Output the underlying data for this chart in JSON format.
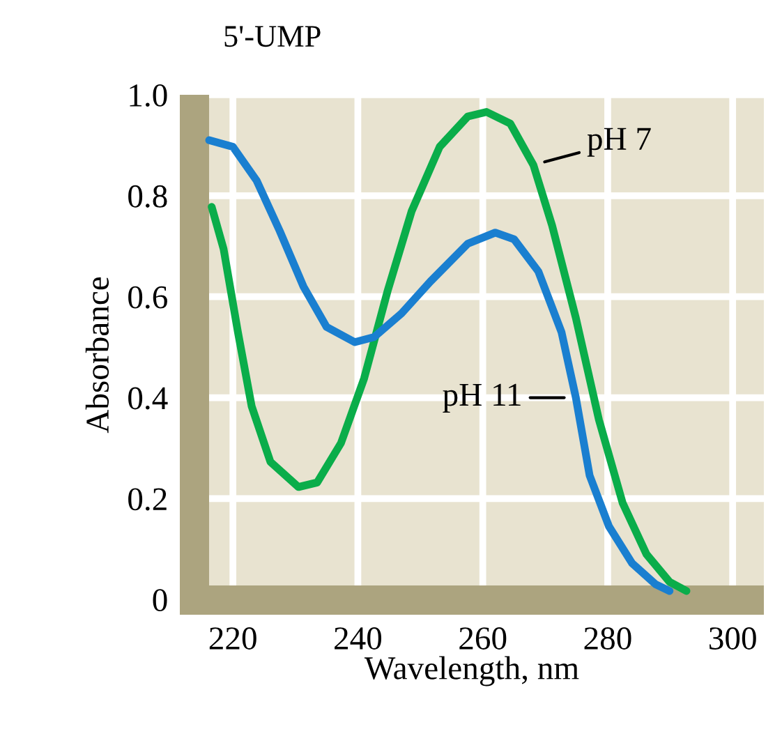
{
  "chart_data": {
    "type": "line",
    "title": "5'-UMP",
    "xlabel": "Wavelength, nm",
    "ylabel": "Absorbance",
    "xlim": [
      211.5,
      305
    ],
    "ylim": [
      -0.03,
      1.0
    ],
    "xticks": [
      220,
      240,
      260,
      280,
      300
    ],
    "yticks": [
      {
        "value": 0,
        "label": "0"
      },
      {
        "value": 0.2,
        "label": "0.2"
      },
      {
        "value": 0.4,
        "label": "0.4"
      },
      {
        "value": 0.6,
        "label": "0.6"
      },
      {
        "value": 0.8,
        "label": "0.8"
      },
      {
        "value": 1.0,
        "label": "1.0"
      }
    ],
    "grid": true,
    "legend": false,
    "marker": "none",
    "line_style": "solid",
    "series": [
      {
        "name": "pH 7",
        "color": "#0aad4a",
        "x": [
          216.6,
          218.5,
          220.8,
          223,
          226,
          230.5,
          233.5,
          237.3,
          241,
          244.8,
          248.6,
          253.1,
          257.6,
          260.6,
          264.4,
          268.1,
          271.1,
          274.9,
          278.6,
          282.4,
          286.2,
          289.9,
          292.6
        ],
        "values": [
          0.778,
          0.695,
          0.53,
          0.383,
          0.273,
          0.223,
          0.232,
          0.31,
          0.438,
          0.613,
          0.769,
          0.897,
          0.957,
          0.966,
          0.943,
          0.861,
          0.741,
          0.558,
          0.356,
          0.191,
          0.09,
          0.035,
          0.017
        ]
      },
      {
        "name": "pH 11",
        "color": "#1a7fd0",
        "x": [
          216.2,
          220,
          223.8,
          227.5,
          231.3,
          235,
          239.5,
          242.6,
          247,
          251.6,
          257.6,
          262,
          265,
          268.9,
          272.6,
          274.9,
          277.1,
          280.2,
          283.9,
          287.7,
          289.9
        ],
        "values": [
          0.91,
          0.897,
          0.83,
          0.73,
          0.62,
          0.54,
          0.51,
          0.52,
          0.567,
          0.63,
          0.705,
          0.727,
          0.714,
          0.65,
          0.53,
          0.4,
          0.246,
          0.145,
          0.072,
          0.03,
          0.017
        ]
      }
    ]
  }
}
